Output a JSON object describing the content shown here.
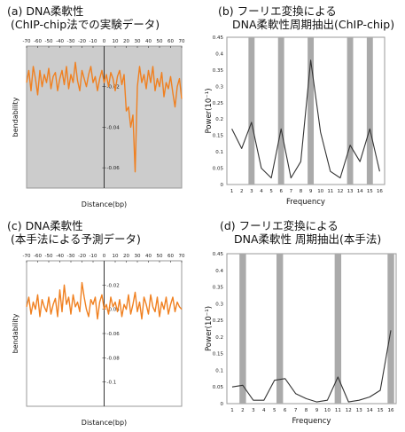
{
  "chart_data": [
    {
      "id": "a",
      "type": "line",
      "title": "(a) DNA柔軟性",
      "subtitle": "(ChIP-chip法での実験データ)",
      "xlabel": "Distance(bp)",
      "ylabel": "bendability",
      "xlim": [
        -70,
        70
      ],
      "ylim": [
        -0.07,
        0.0
      ],
      "x_ticks": [
        "-70",
        "-60",
        "-50",
        "-40",
        "-30",
        "-20",
        "-10",
        "0",
        "10",
        "20",
        "30",
        "40",
        "50",
        "60",
        "70"
      ],
      "y_ticks": [
        "-0.02",
        "-0.04",
        "-0.06"
      ],
      "line_color": "#f08020",
      "background": "#cccccc",
      "series": [
        {
          "x": [
            -70,
            -68,
            -66,
            -64,
            -62,
            -60,
            -58,
            -56,
            -54,
            -52,
            -50,
            -48,
            -46,
            -44,
            -42,
            -40,
            -38,
            -36,
            -34,
            -32,
            -30,
            -28,
            -26,
            -24,
            -22,
            -20,
            -18,
            -16,
            -14,
            -12,
            -10,
            -8,
            -6,
            -4,
            -2,
            0,
            2,
            4,
            6,
            8,
            10,
            12,
            14,
            16,
            18,
            20,
            22,
            24,
            26,
            28,
            30,
            32,
            34,
            36,
            38,
            40,
            42,
            44,
            46,
            48,
            50,
            52,
            54,
            56,
            58,
            60,
            62,
            64,
            66,
            68,
            70
          ],
          "y": [
            -0.018,
            -0.012,
            -0.022,
            -0.01,
            -0.016,
            -0.024,
            -0.012,
            -0.02,
            -0.014,
            -0.018,
            -0.011,
            -0.021,
            -0.015,
            -0.013,
            -0.022,
            -0.016,
            -0.012,
            -0.019,
            -0.01,
            -0.021,
            -0.014,
            -0.018,
            -0.008,
            -0.017,
            -0.022,
            -0.012,
            -0.016,
            -0.02,
            -0.014,
            -0.01,
            -0.018,
            -0.015,
            -0.022,
            -0.016,
            -0.012,
            -0.018,
            -0.014,
            -0.02,
            -0.013,
            -0.016,
            -0.022,
            -0.015,
            -0.012,
            -0.019,
            -0.014,
            -0.032,
            -0.03,
            -0.04,
            -0.034,
            -0.062,
            -0.02,
            -0.01,
            -0.018,
            -0.014,
            -0.021,
            -0.012,
            -0.018,
            -0.01,
            -0.022,
            -0.016,
            -0.02,
            -0.013,
            -0.025,
            -0.018,
            -0.021,
            -0.015,
            -0.023,
            -0.03,
            -0.02,
            -0.016,
            -0.026
          ]
        }
      ]
    },
    {
      "id": "b",
      "type": "line",
      "title": "(b) フーリエ変換による",
      "subtitle": "DNA柔軟性周期抽出(ChIP-chip)",
      "xlabel": "Frequency",
      "ylabel": "Power(10⁻¹)",
      "xlim": [
        0.5,
        16.5
      ],
      "ylim": [
        0,
        0.45
      ],
      "x_ticks": [
        "1",
        "2",
        "3",
        "4",
        "5",
        "6",
        "7",
        "8",
        "9",
        "10",
        "11",
        "12",
        "13",
        "14",
        "15",
        "16"
      ],
      "y_ticks": [
        "0.45",
        "0.4",
        "0.35",
        "0.3",
        "0.25",
        "0.2",
        "0.15",
        "0.1",
        "0.05",
        "0"
      ],
      "highlight_bands": [
        3,
        6,
        9,
        13,
        15
      ],
      "line_color": "#333333",
      "band_color": "#aaaaaa",
      "series": [
        {
          "x": [
            1,
            2,
            3,
            4,
            5,
            6,
            7,
            8,
            9,
            10,
            11,
            12,
            13,
            14,
            15,
            16
          ],
          "y": [
            0.17,
            0.11,
            0.19,
            0.05,
            0.02,
            0.17,
            0.02,
            0.07,
            0.38,
            0.16,
            0.04,
            0.02,
            0.12,
            0.07,
            0.17,
            0.04
          ]
        }
      ]
    },
    {
      "id": "c",
      "type": "line",
      "title": "(c) DNA柔軟性",
      "subtitle": "(本手法による予測データ)",
      "xlabel": "Distance(bp)",
      "ylabel": "bendability",
      "xlim": [
        -70,
        70
      ],
      "ylim": [
        -0.12,
        0.0
      ],
      "x_ticks": [
        "-70",
        "-60",
        "-50",
        "-40",
        "-30",
        "-20",
        "-10",
        "0",
        "10",
        "20",
        "30",
        "40",
        "50",
        "60",
        "70"
      ],
      "y_ticks": [
        "-0.02",
        "-0.04",
        "-0.06",
        "-0.08",
        "-0.1"
      ],
      "line_color": "#f08020",
      "background": "#ffffff",
      "series": [
        {
          "x": [
            -70,
            -68,
            -66,
            -64,
            -62,
            -60,
            -58,
            -56,
            -54,
            -52,
            -50,
            -48,
            -46,
            -44,
            -42,
            -40,
            -38,
            -36,
            -34,
            -32,
            -30,
            -28,
            -26,
            -24,
            -22,
            -20,
            -18,
            -16,
            -14,
            -12,
            -10,
            -8,
            -6,
            -4,
            -2,
            0,
            2,
            4,
            6,
            8,
            10,
            12,
            14,
            16,
            18,
            20,
            22,
            24,
            26,
            28,
            30,
            32,
            34,
            36,
            38,
            40,
            42,
            44,
            46,
            48,
            50,
            52,
            54,
            56,
            58,
            60,
            62,
            64,
            66,
            68,
            70
          ],
          "y": [
            -0.038,
            -0.03,
            -0.044,
            -0.034,
            -0.04,
            -0.028,
            -0.046,
            -0.032,
            -0.038,
            -0.042,
            -0.03,
            -0.044,
            -0.036,
            -0.031,
            -0.046,
            -0.024,
            -0.042,
            -0.02,
            -0.036,
            -0.03,
            -0.044,
            -0.028,
            -0.038,
            -0.034,
            -0.042,
            -0.018,
            -0.03,
            -0.04,
            -0.046,
            -0.032,
            -0.036,
            -0.03,
            -0.048,
            -0.034,
            -0.028,
            -0.04,
            -0.036,
            -0.044,
            -0.03,
            -0.038,
            -0.034,
            -0.042,
            -0.032,
            -0.046,
            -0.036,
            -0.04,
            -0.028,
            -0.044,
            -0.036,
            -0.026,
            -0.042,
            -0.034,
            -0.048,
            -0.03,
            -0.036,
            -0.044,
            -0.028,
            -0.038,
            -0.042,
            -0.03,
            -0.046,
            -0.034,
            -0.04,
            -0.03,
            -0.044,
            -0.036,
            -0.03,
            -0.042,
            -0.034,
            -0.038,
            -0.04
          ]
        }
      ]
    },
    {
      "id": "d",
      "type": "line",
      "title": "(d) フーリエ変換による",
      "subtitle": "DNA柔軟性 周期抽出(本手法)",
      "xlabel": "Frequency",
      "ylabel": "Power(10⁻¹)",
      "xlim": [
        0.5,
        16.5
      ],
      "ylim": [
        0,
        0.45
      ],
      "x_ticks": [
        "1",
        "2",
        "3",
        "4",
        "5",
        "6",
        "7",
        "8",
        "9",
        "10",
        "11",
        "12",
        "13",
        "14",
        "15",
        "16"
      ],
      "y_ticks": [
        "0.45",
        "0.4",
        "0.35",
        "0.3",
        "0.25",
        "0.2",
        "0.15",
        "0.1",
        "0.05",
        "0"
      ],
      "highlight_bands": [
        2,
        5.5,
        11,
        16
      ],
      "line_color": "#333333",
      "band_color": "#aaaaaa",
      "series": [
        {
          "x": [
            1,
            2,
            3,
            4,
            5,
            6,
            7,
            8,
            9,
            10,
            11,
            12,
            13,
            14,
            15,
            16
          ],
          "y": [
            0.05,
            0.055,
            0.01,
            0.01,
            0.07,
            0.075,
            0.03,
            0.015,
            0.005,
            0.01,
            0.08,
            0.005,
            0.01,
            0.02,
            0.04,
            0.22
          ]
        }
      ]
    }
  ]
}
